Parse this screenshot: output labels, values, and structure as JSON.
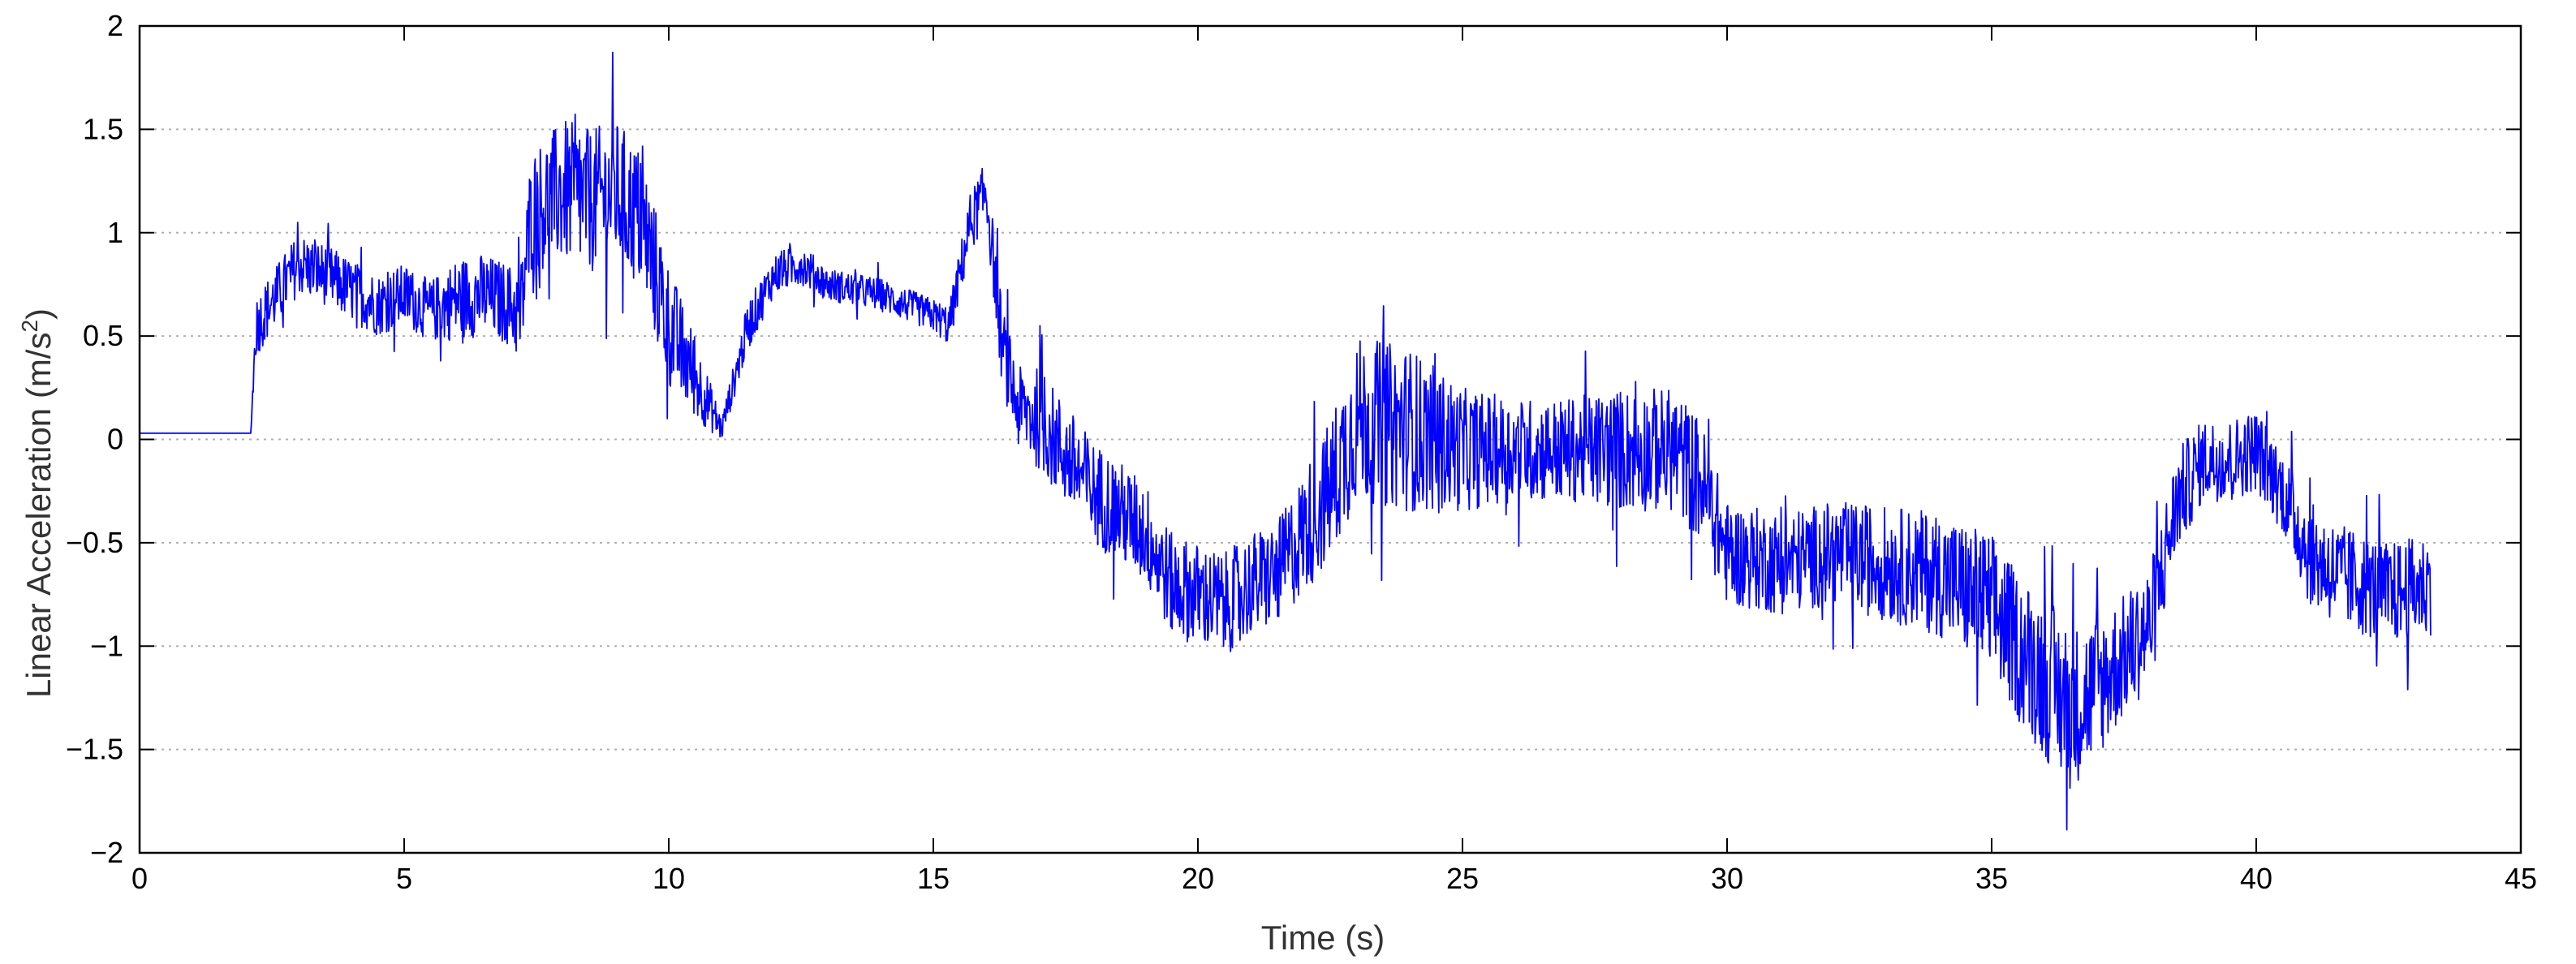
{
  "chart_data": {
    "type": "line",
    "title": "",
    "xlabel": "Time (s)",
    "ylabel_main": "Linear Acceleration (m/s",
    "ylabel_sup": "2",
    "ylabel_end": ")",
    "xlim": [
      0,
      45
    ],
    "ylim": [
      -2,
      2
    ],
    "xticks": [
      0,
      5,
      10,
      15,
      20,
      25,
      30,
      35,
      40,
      45
    ],
    "xtick_labels": [
      "0",
      "5",
      "10",
      "15",
      "20",
      "25",
      "30",
      "35",
      "40",
      "45"
    ],
    "yticks": [
      2,
      1.5,
      1,
      0.5,
      0,
      -0.5,
      -1,
      -1.5,
      -2
    ],
    "ytick_labels": [
      "2",
      "1.5",
      "1",
      "0.5",
      "0",
      "−0.5",
      "−1",
      "−1.5",
      "−2"
    ],
    "grid": "horizontal-dotted",
    "line_color": "#0000ff",
    "series": [
      {
        "x": [
          0,
          1,
          2.1,
          2.2,
          3,
          3.5,
          4,
          4.5,
          5,
          5.5,
          6,
          6.5,
          7,
          7.2,
          7.4,
          8,
          8.5,
          9,
          9.5,
          10,
          10.5,
          11,
          11.5,
          12,
          12.5,
          13,
          14,
          15,
          15.3,
          15.7,
          16,
          16.3,
          16.6,
          17,
          18,
          19,
          19.5,
          20,
          20.5,
          21,
          21.5,
          22,
          22.5,
          23,
          24,
          25,
          26,
          27,
          28,
          29,
          29.5,
          30,
          31,
          32,
          33,
          34,
          35,
          35.5,
          36,
          36.5,
          37,
          37.5,
          38,
          38.5,
          39,
          39.5,
          40,
          40.5,
          41,
          41.5,
          42,
          42.5,
          43,
          43.3
        ],
        "y": [
          0.03,
          0.03,
          0.03,
          0.55,
          0.85,
          0.8,
          0.72,
          0.65,
          0.7,
          0.62,
          0.68,
          0.7,
          0.65,
          0.6,
          1.1,
          1.2,
          1.15,
          1.2,
          1.05,
          0.55,
          0.3,
          0.05,
          0.55,
          0.8,
          0.85,
          0.75,
          0.7,
          0.6,
          0.55,
          1.05,
          1.2,
          0.45,
          0.15,
          0.1,
          -0.25,
          -0.45,
          -0.7,
          -0.75,
          -0.8,
          -0.7,
          -0.65,
          -0.45,
          -0.25,
          0.1,
          0.05,
          -0.05,
          -0.05,
          -0.05,
          -0.05,
          -0.05,
          -0.2,
          -0.55,
          -0.6,
          -0.55,
          -0.6,
          -0.65,
          -0.8,
          -1.0,
          -1.15,
          -1.3,
          -1.2,
          -1.05,
          -0.9,
          -0.3,
          -0.1,
          -0.1,
          -0.05,
          -0.25,
          -0.55,
          -0.65,
          -0.7,
          -0.75,
          -0.72,
          -0.7
        ],
        "noise": [
          0,
          0,
          0,
          0.15,
          0.15,
          0.15,
          0.15,
          0.15,
          0.15,
          0.15,
          0.2,
          0.2,
          0.2,
          0.25,
          0.3,
          0.35,
          0.35,
          0.35,
          0.35,
          0.3,
          0.2,
          0.06,
          0.12,
          0.1,
          0.1,
          0.08,
          0.08,
          0.08,
          0.1,
          0.15,
          0.15,
          0.2,
          0.2,
          0.25,
          0.25,
          0.25,
          0.25,
          0.25,
          0.25,
          0.25,
          0.25,
          0.3,
          0.35,
          0.4,
          0.4,
          0.3,
          0.25,
          0.25,
          0.3,
          0.3,
          0.3,
          0.25,
          0.25,
          0.25,
          0.28,
          0.3,
          0.35,
          0.35,
          0.4,
          0.4,
          0.35,
          0.3,
          0.3,
          0.25,
          0.2,
          0.2,
          0.2,
          0.2,
          0.25,
          0.25,
          0.25,
          0.25,
          0.25,
          0.25
        ]
      }
    ]
  }
}
